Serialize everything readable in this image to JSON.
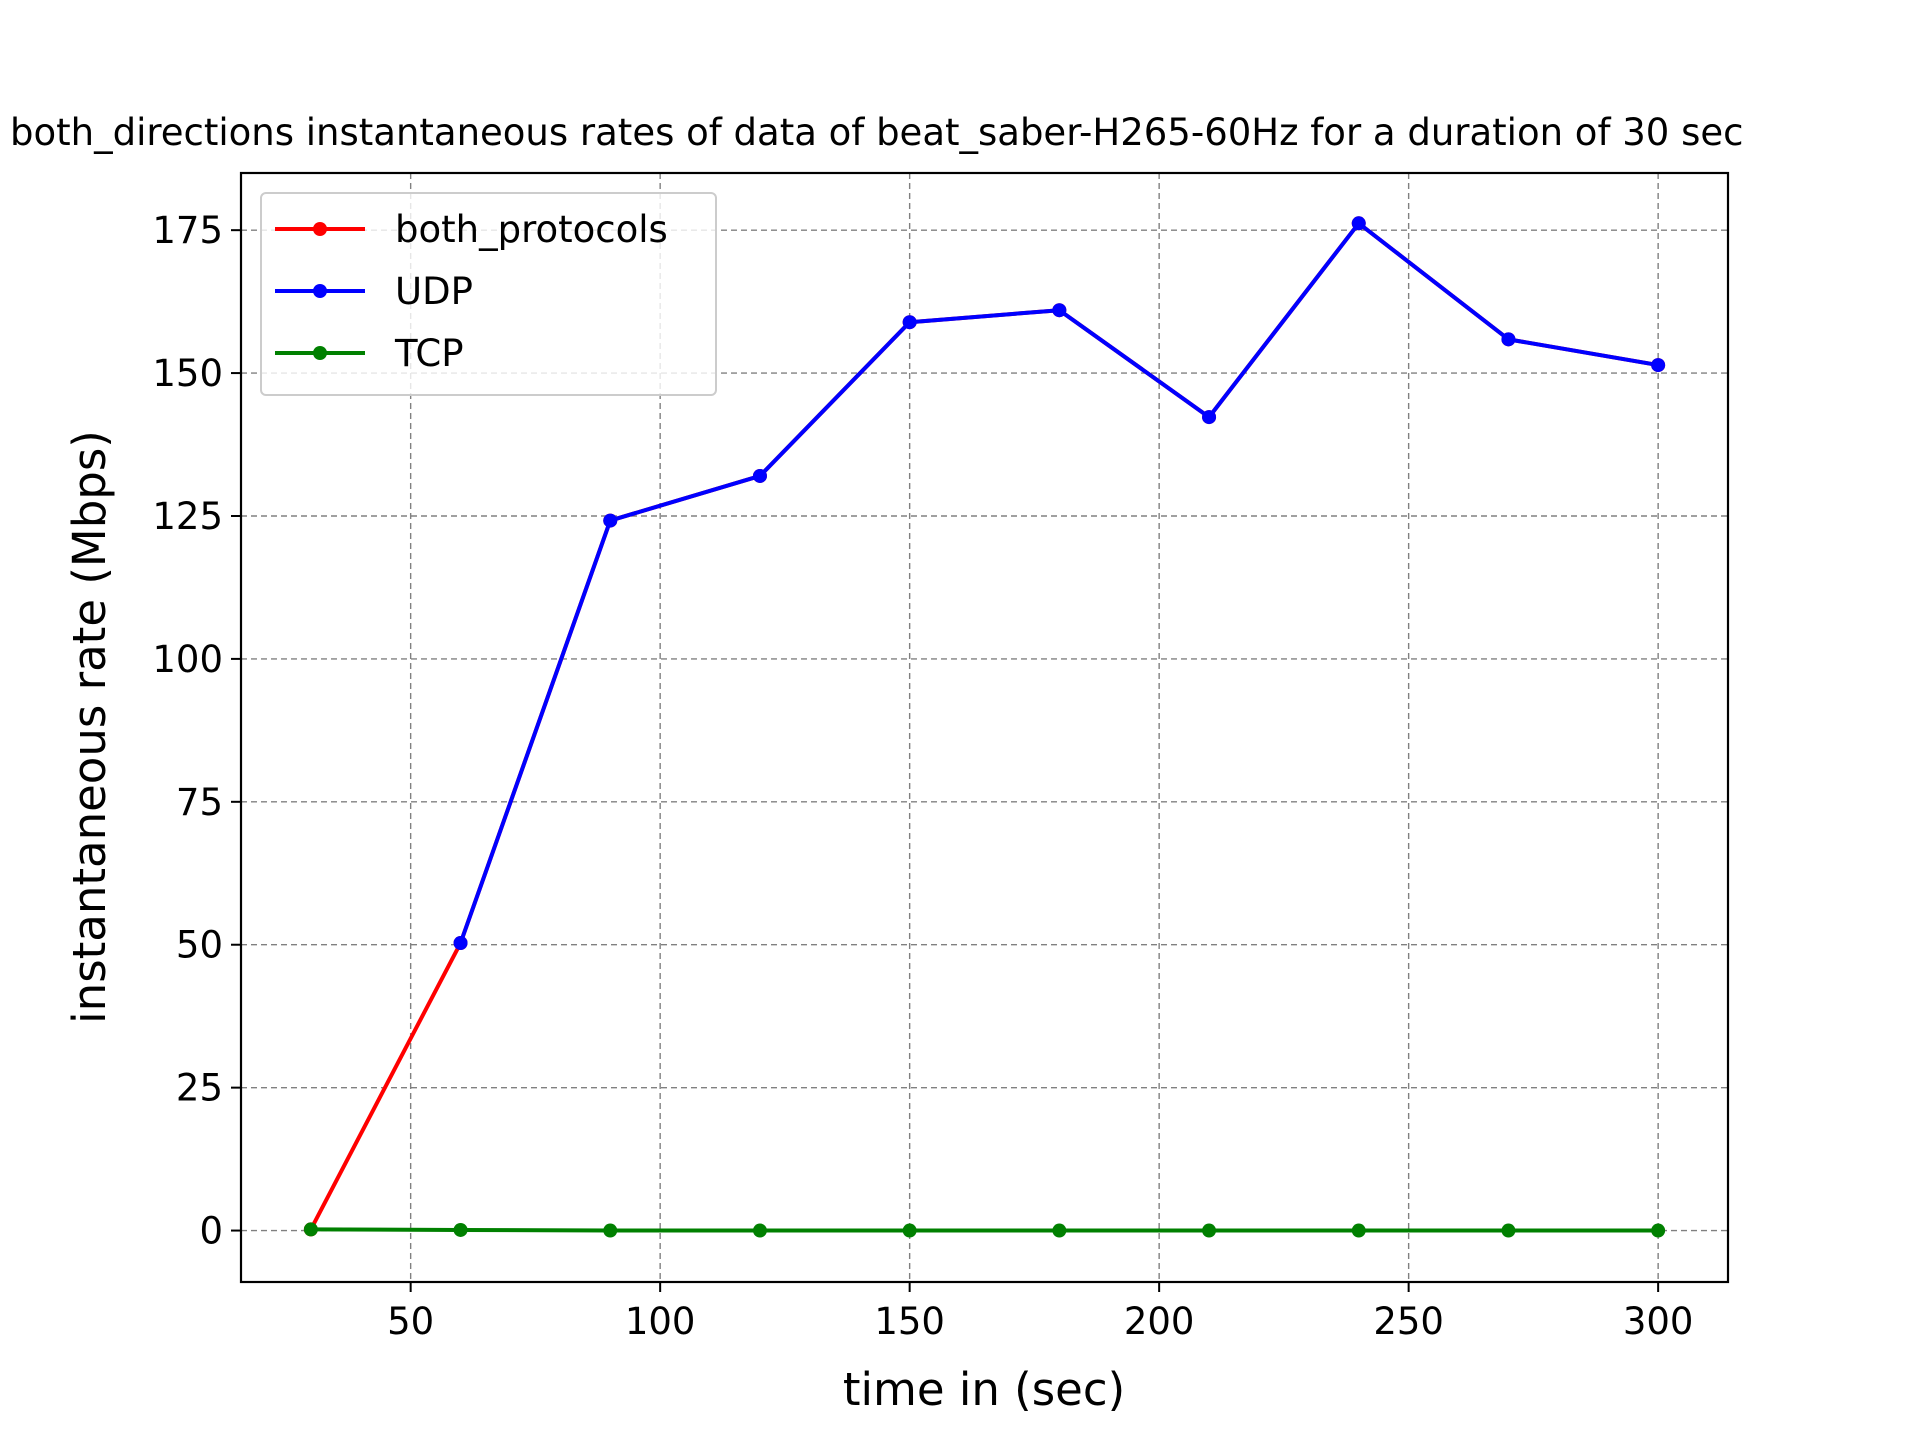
{
  "chart_data": {
    "type": "line",
    "title": "both_directions instantaneous rates of data of beat_saber-H265-60Hz for a duration of 30 sec",
    "xlabel": "time in (sec)",
    "ylabel": "instantaneous rate (Mbps)",
    "xlim": [
      16,
      314
    ],
    "ylim": [
      -9,
      185
    ],
    "xticks": [
      50,
      100,
      150,
      200,
      250,
      300
    ],
    "yticks": [
      0,
      25,
      50,
      75,
      100,
      125,
      150,
      175
    ],
    "grid": true,
    "legend_position": "top-left",
    "x": [
      30,
      60,
      90,
      120,
      150,
      180,
      210,
      240,
      270,
      300
    ],
    "series": [
      {
        "name": "both_protocols",
        "color": "#ff0000",
        "values": [
          0.2,
          50.3,
          124.2,
          132.0,
          158.9,
          161.0,
          142.3,
          176.2,
          155.9,
          151.4
        ]
      },
      {
        "name": "UDP",
        "color": "#0000ff",
        "values": [
          null,
          50.3,
          124.2,
          132.0,
          158.9,
          161.0,
          142.3,
          176.2,
          155.9,
          151.4
        ]
      },
      {
        "name": "TCP",
        "color": "#008000",
        "values": [
          0.2,
          0.1,
          0.0,
          0.0,
          0.0,
          0.0,
          0.0,
          0.0,
          0.0,
          0.0
        ]
      }
    ]
  }
}
